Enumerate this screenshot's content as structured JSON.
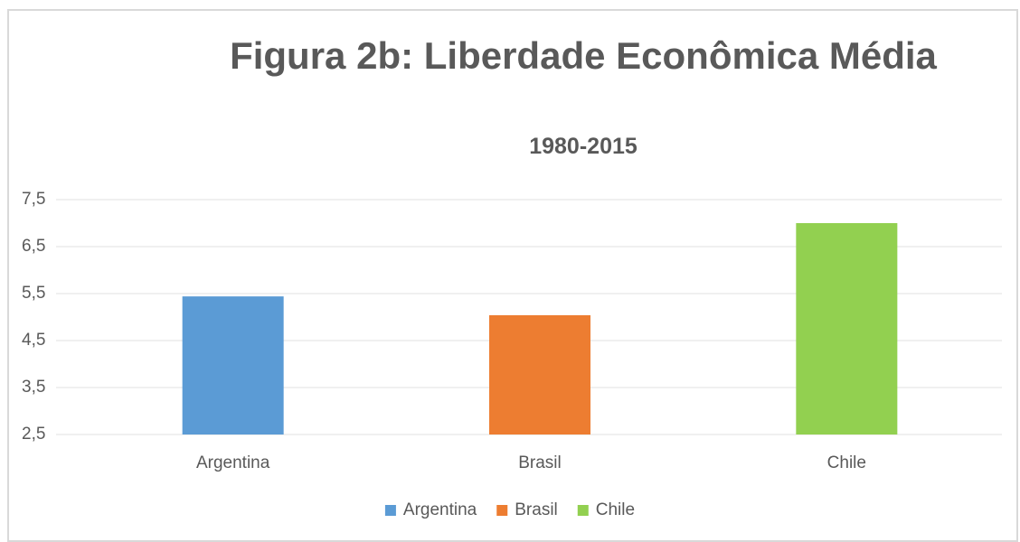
{
  "chart_data": {
    "type": "bar",
    "title": "Figura 2b: Liberdade Econômica Média",
    "subtitle": "1980-2015",
    "categories": [
      "Argentina",
      "Brasil",
      "Chile"
    ],
    "values": [
      5.44,
      5.04,
      7.0
    ],
    "colors": [
      "#5b9bd5",
      "#ed7d31",
      "#92d050"
    ],
    "ylim": [
      2.5,
      7.5
    ],
    "yticks": [
      {
        "value": 2.5,
        "label": "2,5"
      },
      {
        "value": 3.5,
        "label": "3,5"
      },
      {
        "value": 4.5,
        "label": "4,5"
      },
      {
        "value": 5.5,
        "label": "5,5"
      },
      {
        "value": 6.5,
        "label": "6,5"
      },
      {
        "value": 7.5,
        "label": "7,5"
      }
    ],
    "grid": true,
    "legend": "bottom"
  }
}
